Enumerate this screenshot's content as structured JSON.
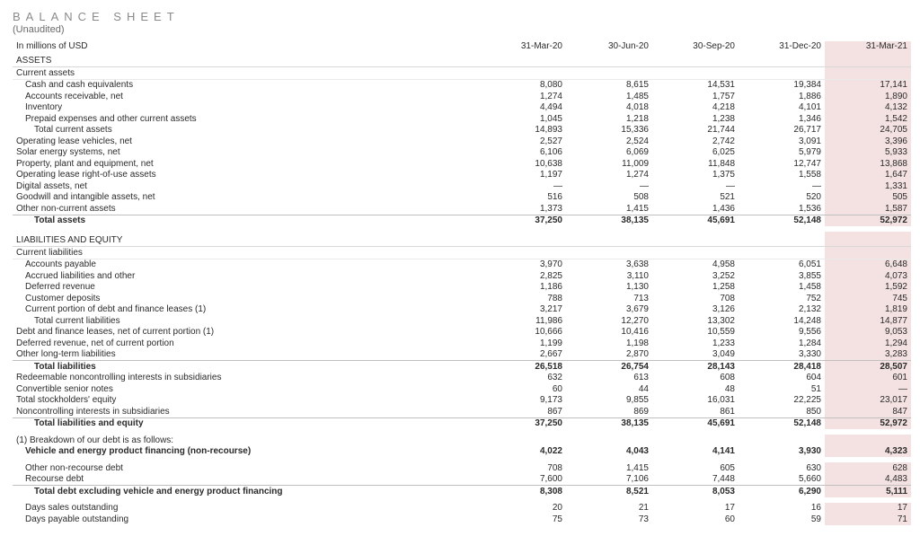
{
  "title": "BALANCE SHEET",
  "subtitle": "(Unaudited)",
  "unit_label": "In millions of USD",
  "columns": [
    "31-Mar-20",
    "30-Jun-20",
    "30-Sep-20",
    "31-Dec-20",
    "31-Mar-21"
  ],
  "highlight_col": 4,
  "highlight_color": "#f4e2e2",
  "colors": {
    "text": "#2a2a2a",
    "muted": "#8a8a8a",
    "rule": "#d8d8d8",
    "bg": "#ffffff"
  },
  "rows": [
    {
      "type": "section",
      "label": "ASSETS"
    },
    {
      "type": "mini",
      "indent": 0,
      "label": "Current assets"
    },
    {
      "indent": 1,
      "label": "Cash and cash equivalents",
      "v": [
        "8,080",
        "8,615",
        "14,531",
        "19,384",
        "17,141"
      ]
    },
    {
      "indent": 1,
      "label": "Accounts receivable, net",
      "v": [
        "1,274",
        "1,485",
        "1,757",
        "1,886",
        "1,890"
      ]
    },
    {
      "indent": 1,
      "label": "Inventory",
      "v": [
        "4,494",
        "4,018",
        "4,218",
        "4,101",
        "4,132"
      ]
    },
    {
      "indent": 1,
      "label": "Prepaid expenses and other current assets",
      "v": [
        "1,045",
        "1,218",
        "1,238",
        "1,346",
        "1,542"
      ]
    },
    {
      "indent": 2,
      "label": "Total current assets",
      "v": [
        "14,893",
        "15,336",
        "21,744",
        "26,717",
        "24,705"
      ]
    },
    {
      "indent": 0,
      "label": "Operating lease vehicles, net",
      "v": [
        "2,527",
        "2,524",
        "2,742",
        "3,091",
        "3,396"
      ]
    },
    {
      "indent": 0,
      "label": "Solar energy systems, net",
      "v": [
        "6,106",
        "6,069",
        "6,025",
        "5,979",
        "5,933"
      ]
    },
    {
      "indent": 0,
      "label": "Property, plant and equipment, net",
      "v": [
        "10,638",
        "11,009",
        "11,848",
        "12,747",
        "13,868"
      ]
    },
    {
      "indent": 0,
      "label": "Operating lease right-of-use assets",
      "v": [
        "1,197",
        "1,274",
        "1,375",
        "1,558",
        "1,647"
      ]
    },
    {
      "indent": 0,
      "label": "Digital assets, net",
      "v": [
        "—",
        "—",
        "—",
        "—",
        "1,331"
      ]
    },
    {
      "indent": 0,
      "label": "Goodwill and intangible assets, net",
      "v": [
        "516",
        "508",
        "521",
        "520",
        "505"
      ]
    },
    {
      "indent": 0,
      "label": "Other non-current assets",
      "v": [
        "1,373",
        "1,415",
        "1,436",
        "1,536",
        "1,587"
      ]
    },
    {
      "type": "total",
      "indent": 2,
      "label": "Total assets",
      "v": [
        "37,250",
        "38,135",
        "45,691",
        "52,148",
        "52,972"
      ]
    },
    {
      "type": "empty"
    },
    {
      "type": "section",
      "label": "LIABILITIES AND EQUITY"
    },
    {
      "type": "mini",
      "indent": 0,
      "label": "Current liabilities"
    },
    {
      "indent": 1,
      "label": "Accounts payable",
      "v": [
        "3,970",
        "3,638",
        "4,958",
        "6,051",
        "6,648"
      ]
    },
    {
      "indent": 1,
      "label": "Accrued liabilities and other",
      "v": [
        "2,825",
        "3,110",
        "3,252",
        "3,855",
        "4,073"
      ]
    },
    {
      "indent": 1,
      "label": "Deferred revenue",
      "v": [
        "1,186",
        "1,130",
        "1,258",
        "1,458",
        "1,592"
      ]
    },
    {
      "indent": 1,
      "label": "Customer deposits",
      "v": [
        "788",
        "713",
        "708",
        "752",
        "745"
      ]
    },
    {
      "indent": 1,
      "label": "Current portion of debt and finance leases (1)",
      "v": [
        "3,217",
        "3,679",
        "3,126",
        "2,132",
        "1,819"
      ]
    },
    {
      "indent": 2,
      "label": "Total current liabilities",
      "v": [
        "11,986",
        "12,270",
        "13,302",
        "14,248",
        "14,877"
      ]
    },
    {
      "indent": 0,
      "label": "Debt and finance leases, net of current portion (1)",
      "v": [
        "10,666",
        "10,416",
        "10,559",
        "9,556",
        "9,053"
      ]
    },
    {
      "indent": 0,
      "label": "Deferred revenue, net of current portion",
      "v": [
        "1,199",
        "1,198",
        "1,233",
        "1,284",
        "1,294"
      ]
    },
    {
      "indent": 0,
      "label": "Other long-term liabilities",
      "v": [
        "2,667",
        "2,870",
        "3,049",
        "3,330",
        "3,283"
      ]
    },
    {
      "type": "total",
      "indent": 2,
      "label": "Total liabilities",
      "v": [
        "26,518",
        "26,754",
        "28,143",
        "28,418",
        "28,507"
      ]
    },
    {
      "indent": 0,
      "label": "Redeemable noncontrolling interests in subsidiaries",
      "v": [
        "632",
        "613",
        "608",
        "604",
        "601"
      ]
    },
    {
      "indent": 0,
      "label": "Convertible senior notes",
      "v": [
        "60",
        "44",
        "48",
        "51",
        "—"
      ]
    },
    {
      "indent": 0,
      "label": "Total stockholders' equity",
      "v": [
        "9,173",
        "9,855",
        "16,031",
        "22,225",
        "23,017"
      ]
    },
    {
      "indent": 0,
      "label": "Noncontrolling interests in subsidiaries",
      "v": [
        "867",
        "869",
        "861",
        "850",
        "847"
      ]
    },
    {
      "type": "total",
      "indent": 2,
      "label": "Total liabilities and equity",
      "v": [
        "37,250",
        "38,135",
        "45,691",
        "52,148",
        "52,972"
      ]
    },
    {
      "type": "empty"
    },
    {
      "indent": 0,
      "label": "(1) Breakdown of our debt is as follows:"
    },
    {
      "type": "bold",
      "indent": 1,
      "label": "Vehicle and energy product financing (non-recourse)",
      "v": [
        "4,022",
        "4,043",
        "4,141",
        "3,930",
        "4,323"
      ]
    },
    {
      "type": "empty"
    },
    {
      "indent": 1,
      "label": "Other non-recourse debt",
      "v": [
        "708",
        "1,415",
        "605",
        "630",
        "628"
      ]
    },
    {
      "indent": 1,
      "label": "Recourse debt",
      "v": [
        "7,600",
        "7,106",
        "7,448",
        "5,660",
        "4,483"
      ]
    },
    {
      "type": "total",
      "indent": 2,
      "label": "Total debt excluding vehicle and energy product financing",
      "v": [
        "8,308",
        "8,521",
        "8,053",
        "6,290",
        "5,111"
      ]
    },
    {
      "type": "empty"
    },
    {
      "indent": 1,
      "label": "Days sales outstanding",
      "v": [
        "20",
        "21",
        "17",
        "16",
        "17"
      ]
    },
    {
      "indent": 1,
      "label": "Days payable outstanding",
      "v": [
        "75",
        "73",
        "60",
        "59",
        "71"
      ]
    }
  ]
}
